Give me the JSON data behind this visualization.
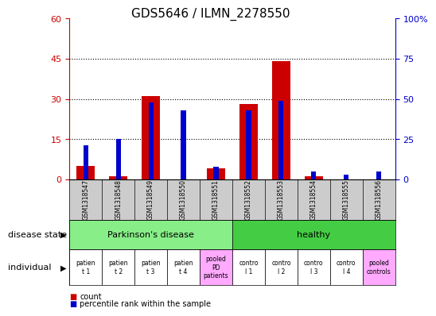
{
  "title": "GDS5646 / ILMN_2278550",
  "samples": [
    "GSM1318547",
    "GSM1318548",
    "GSM1318549",
    "GSM1318550",
    "GSM1318551",
    "GSM1318552",
    "GSM1318553",
    "GSM1318554",
    "GSM1318555",
    "GSM1318556"
  ],
  "count_values": [
    5,
    1,
    31,
    0,
    4,
    28,
    44,
    1,
    0,
    0
  ],
  "percentile_values": [
    21,
    25,
    48,
    43,
    8,
    43,
    49,
    5,
    3,
    5
  ],
  "ylim_left": [
    0,
    60
  ],
  "ylim_right": [
    0,
    100
  ],
  "yticks_left": [
    0,
    15,
    30,
    45,
    60
  ],
  "yticks_right": [
    0,
    25,
    50,
    75,
    100
  ],
  "ytick_labels_right": [
    "0",
    "25",
    "50",
    "75",
    "100%"
  ],
  "bar_color_red": "#cc0000",
  "bar_color_blue": "#0000cc",
  "disease_group1_label": "Parkinson's disease",
  "disease_group1_color": "#88ee88",
  "disease_group2_label": "healthy",
  "disease_group2_color": "#44cc44",
  "individual_labels": [
    "patien\nt 1",
    "patien\nt 2",
    "patien\nt 3",
    "patien\nt 4",
    "pooled\nPD\npatients",
    "contro\nl 1",
    "contro\nl 2",
    "contro\nl 3",
    "contro\nl 4",
    "pooled\ncontrols"
  ],
  "ind_bg_colors": [
    "white",
    "white",
    "white",
    "white",
    "#ffaaff",
    "white",
    "white",
    "white",
    "white",
    "#ffaaff"
  ],
  "sample_bg_color": "#cccccc",
  "left_label_disease": "disease state",
  "left_label_individual": "individual",
  "legend_count": "count",
  "legend_percentile": "percentile rank within the sample",
  "red_bar_width": 0.55,
  "blue_bar_width": 0.15
}
